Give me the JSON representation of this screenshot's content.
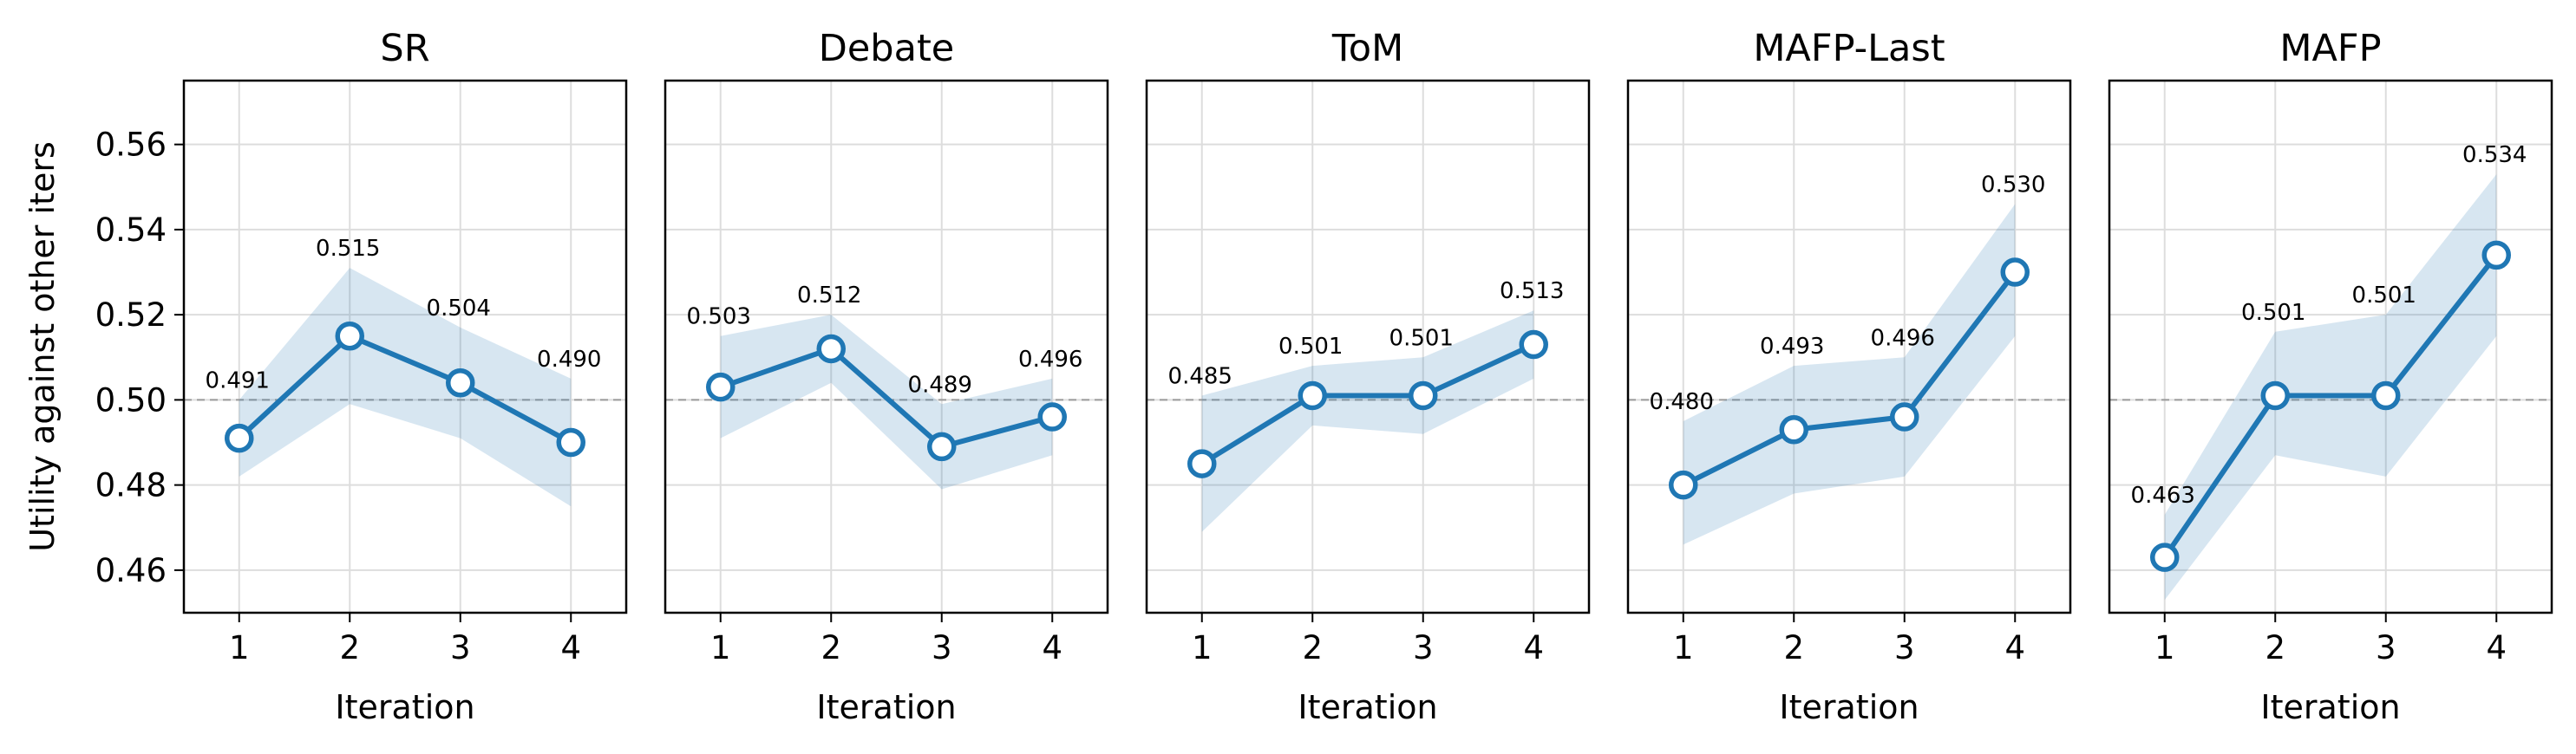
{
  "figure": {
    "ylabel": "Utility against other iters",
    "xlabel": "Iteration",
    "reference_line": 0.5
  },
  "colors": {
    "line": "#1f77b4",
    "band": "#1f77b4",
    "reference": "#9a9a9a",
    "grid": "#dddddd"
  },
  "chart_data": [
    {
      "type": "line",
      "title": "SR",
      "xlabel": "Iteration",
      "ylabel": "Utility against other iters",
      "x": [
        1,
        2,
        3,
        4
      ],
      "ylim": [
        0.45,
        0.575
      ],
      "yticks": [
        0.46,
        0.48,
        0.5,
        0.52,
        0.54,
        0.56
      ],
      "grid": true,
      "series": [
        {
          "values": [
            0.491,
            0.515,
            0.504,
            0.49
          ],
          "labels": [
            "0.491",
            "0.515",
            "0.504",
            "0.490"
          ],
          "band_low": [
            0.482,
            0.499,
            0.491,
            0.475
          ],
          "band_high": [
            0.5,
            0.531,
            0.517,
            0.505
          ]
        }
      ]
    },
    {
      "type": "line",
      "title": "Debate",
      "xlabel": "Iteration",
      "x": [
        1,
        2,
        3,
        4
      ],
      "ylim": [
        0.45,
        0.575
      ],
      "yticks": [
        0.46,
        0.48,
        0.5,
        0.52,
        0.54,
        0.56
      ],
      "grid": true,
      "series": [
        {
          "values": [
            0.503,
            0.512,
            0.489,
            0.496
          ],
          "labels": [
            "0.503",
            "0.512",
            "0.489",
            "0.496"
          ],
          "band_low": [
            0.491,
            0.504,
            0.479,
            0.487
          ],
          "band_high": [
            0.515,
            0.52,
            0.499,
            0.505
          ]
        }
      ]
    },
    {
      "type": "line",
      "title": "ToM",
      "xlabel": "Iteration",
      "x": [
        1,
        2,
        3,
        4
      ],
      "ylim": [
        0.45,
        0.575
      ],
      "yticks": [
        0.46,
        0.48,
        0.5,
        0.52,
        0.54,
        0.56
      ],
      "grid": true,
      "series": [
        {
          "values": [
            0.485,
            0.501,
            0.501,
            0.513
          ],
          "labels": [
            "0.485",
            "0.501",
            "0.501",
            "0.513"
          ],
          "band_low": [
            0.469,
            0.494,
            0.492,
            0.505
          ],
          "band_high": [
            0.501,
            0.508,
            0.51,
            0.521
          ]
        }
      ]
    },
    {
      "type": "line",
      "title": "MAFP-Last",
      "xlabel": "Iteration",
      "x": [
        1,
        2,
        3,
        4
      ],
      "ylim": [
        0.45,
        0.575
      ],
      "yticks": [
        0.46,
        0.48,
        0.5,
        0.52,
        0.54,
        0.56
      ],
      "grid": true,
      "series": [
        {
          "values": [
            0.48,
            0.493,
            0.496,
            0.53
          ],
          "labels": [
            "0.480",
            "0.493",
            "0.496",
            "0.530"
          ],
          "band_low": [
            0.466,
            0.478,
            0.482,
            0.515
          ],
          "band_high": [
            0.495,
            0.508,
            0.51,
            0.546
          ]
        }
      ]
    },
    {
      "type": "line",
      "title": "MAFP",
      "xlabel": "Iteration",
      "x": [
        1,
        2,
        3,
        4
      ],
      "ylim": [
        0.45,
        0.575
      ],
      "yticks": [
        0.46,
        0.48,
        0.5,
        0.52,
        0.54,
        0.56
      ],
      "grid": true,
      "series": [
        {
          "values": [
            0.463,
            0.501,
            0.501,
            0.534
          ],
          "labels": [
            "0.463",
            "0.501",
            "0.501",
            "0.534"
          ],
          "band_low": [
            0.453,
            0.487,
            0.482,
            0.515
          ],
          "band_high": [
            0.473,
            0.516,
            0.52,
            0.553
          ]
        }
      ]
    }
  ]
}
